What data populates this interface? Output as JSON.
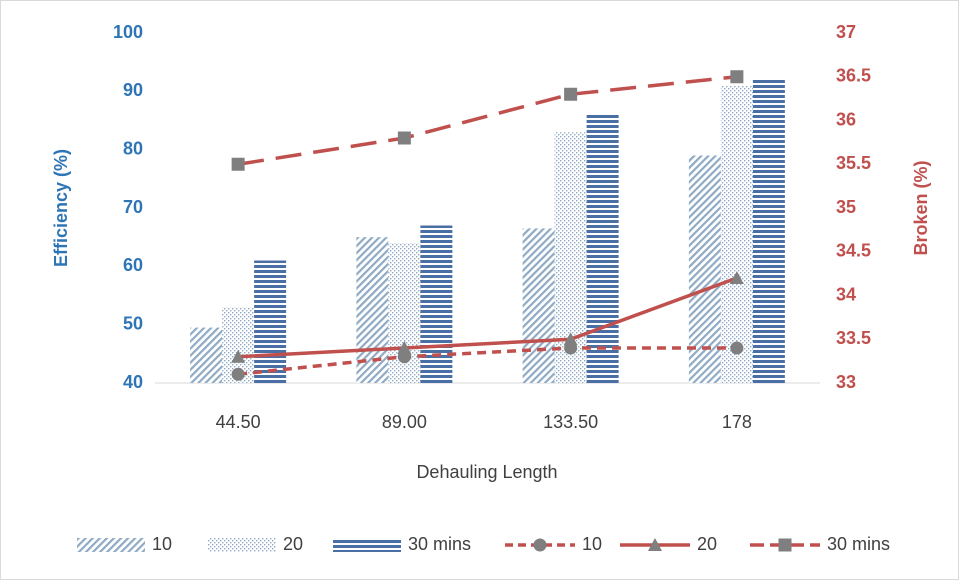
{
  "chart_data": {
    "type": "bar-line",
    "x_label": "Dehauling Length",
    "y_label": "Efficiency (%)",
    "y2_label": "Broken (%)",
    "categories": [
      "44.50",
      "89.00",
      "133.50",
      "178"
    ],
    "ylim": [
      40,
      100
    ],
    "yticks": [
      40,
      50,
      60,
      70,
      80,
      90,
      100
    ],
    "y2lim": [
      33,
      37
    ],
    "y2ticks": [
      33,
      33.5,
      34,
      34.5,
      35,
      35.5,
      36,
      36.5,
      37
    ],
    "y_color": "#2e75b6",
    "y2_color": "#c0504d",
    "series": [
      {
        "name": "10",
        "type": "bar",
        "color": "#8faac4",
        "pattern": "diagonal",
        "values": [
          49.5,
          65,
          66.5,
          79
        ]
      },
      {
        "name": "20",
        "type": "bar",
        "color": "#8faac4",
        "pattern": "dots",
        "values": [
          53,
          64,
          83,
          91
        ]
      },
      {
        "name": "30 mins",
        "type": "bar",
        "color": "#4a6fa5",
        "pattern": "horizontal",
        "values": [
          61,
          67,
          86,
          92
        ]
      },
      {
        "name": "10",
        "type": "line",
        "axis": "y2",
        "color": "#c0504d",
        "dash": "short",
        "marker": "circle",
        "values": [
          33.1,
          33.3,
          33.4,
          33.4
        ]
      },
      {
        "name": "20",
        "type": "line",
        "axis": "y2",
        "color": "#c0504d",
        "dash": "solid",
        "marker": "triangle",
        "values": [
          33.3,
          33.4,
          33.5,
          34.2
        ]
      },
      {
        "name": "30 mins",
        "type": "line",
        "axis": "y2",
        "color": "#c0504d",
        "dash": "long",
        "marker": "square",
        "values": [
          35.5,
          35.8,
          36.3,
          36.5
        ]
      }
    ],
    "legend": "bottom"
  }
}
